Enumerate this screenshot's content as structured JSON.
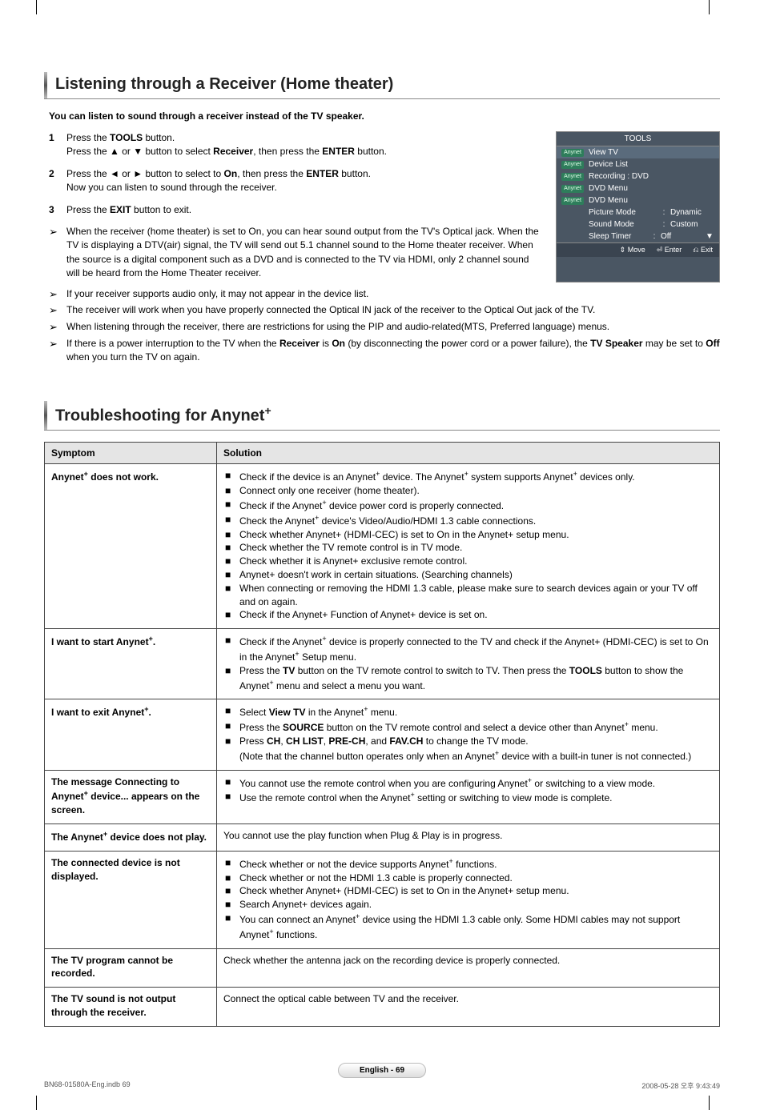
{
  "section1": {
    "title": "Listening through a Receiver (Home theater)",
    "intro": "You can listen to sound through a receiver instead of the TV speaker.",
    "steps": [
      {
        "num": "1",
        "html": "Press the <b>TOOLS</b> button.<br>Press the ▲ or ▼ button to select <b>Receiver</b>, then press the <b>ENTER</b> button."
      },
      {
        "num": "2",
        "html": "Press the ◄ or ► button to select to <b>On</b>, then press the <b>ENTER</b> button.<br>Now you can listen to sound through the receiver."
      },
      {
        "num": "3",
        "html": "Press the <b>EXIT</b> button to exit."
      }
    ],
    "notes": [
      "When the receiver (home theater) is set to On, you can hear sound output from the TV's Optical jack. When the TV is displaying a DTV(air) signal, the TV will send out 5.1 channel sound to the Home theater receiver. When the source is a digital component such as a DVD and is connected to the TV via HDMI, only 2 channel sound will be heard from the Home Theater receiver.",
      "If your receiver supports audio only, it may not appear in the device list.",
      "The receiver will work when you have properly connected the Optical IN jack of the receiver to the Optical Out jack of the TV.",
      "When listening through the receiver, there are restrictions for using the PIP and audio-related(MTS, Preferred language) menus.",
      "If there is a power interruption to the TV when the <b>Receiver</b> is <b>On</b> (by disconnecting the power cord or a power failure), the <b>TV Speaker</b> may be set to <b>Off</b> when you turn the TV on again."
    ]
  },
  "tools": {
    "title": "TOOLS",
    "items": [
      {
        "badge": true,
        "label": "View TV",
        "sel": true
      },
      {
        "badge": true,
        "label": "Device List"
      },
      {
        "badge": true,
        "label": "Recording : DVD"
      },
      {
        "badge": true,
        "label": "DVD Menu"
      },
      {
        "badge": true,
        "label": "DVD Menu"
      },
      {
        "badge": false,
        "label": "Picture Mode",
        "value": "Dynamic"
      },
      {
        "badge": false,
        "label": "Sound Mode",
        "value": "Custom"
      },
      {
        "badge": false,
        "label": "Sleep Timer",
        "value": "Off",
        "arrow": "▼"
      }
    ],
    "nav": {
      "move": "Move",
      "enter": "Enter",
      "exit": "Exit"
    }
  },
  "section2": {
    "title_html": "Troubleshooting for Anynet<sup>+</sup>",
    "headers": {
      "symptom": "Symptom",
      "solution": "Solution"
    },
    "rows": [
      {
        "symptom_html": "Anynet<sup>+</sup> does not work.",
        "bullets": [
          "Check if the device is an Anynet<sup>+</sup> device. The Anynet<sup>+</sup> system supports Anynet<sup>+</sup> devices only.",
          "Connect only one receiver (home theater).",
          "Check if the Anynet<sup>+</sup> device power cord is properly connected.",
          "Check the Anynet<sup>+</sup> device's Video/Audio/HDMI 1.3 cable connections.",
          "Check whether Anynet+ (HDMI-CEC) is set to On in the Anynet+ setup menu.",
          "Check whether the TV remote control is in TV mode.",
          "Check whether it is Anynet+ exclusive remote control.",
          "Anynet+ doesn't work in certain situations. (Searching channels)",
          "When connecting or removing the HDMI 1.3 cable, please make sure to search devices again or your TV off and on again.",
          "Check if the Anynet+ Function of Anynet+ device is set on."
        ]
      },
      {
        "symptom_html": "I want to start Anynet<sup>+</sup>.",
        "bullets": [
          "Check if the Anynet<sup>+</sup> device is properly connected to the TV and check if the Anynet+ (HDMI-CEC) is set to On in the Anynet<sup>+</sup> Setup menu.",
          "Press the <b>TV</b> button on the TV remote control to switch to TV. Then press the <b>TOOLS</b> button to show the Anynet<sup>+</sup> menu and select a menu you want."
        ]
      },
      {
        "symptom_html": "I want to exit Anynet<sup>+</sup>.",
        "bullets": [
          "Select <b>View TV</b> in the Anynet<sup>+</sup> menu.",
          "Press the <b>SOURCE</b> button on the TV remote control and select a device other than Anynet<sup>+</sup> menu.",
          "Press <b>CH</b>, <b>CH LIST</b>, <b>PRE-CH</b>, and <b>FAV.CH</b> to change the TV mode.<br>(Note that the channel button operates only when an Anynet<sup>+</sup> device with a built-in tuner is not connected.)"
        ]
      },
      {
        "symptom_html": "The message Connecting to Anynet<sup>+</sup> device... appears on the screen.",
        "bullets": [
          "You cannot use the remote control when you are configuring Anynet<sup>+</sup> or switching to a view mode.",
          "Use the remote control when the Anynet<sup>+</sup> setting or switching to view mode is complete."
        ]
      },
      {
        "symptom_html": "The Anynet<sup>+</sup> device does not play.",
        "plain": "You cannot use the play function when Plug & Play is in progress."
      },
      {
        "symptom_html": "The connected device is not displayed.",
        "bullets": [
          "Check whether or not the device supports Anynet<sup>+</sup> functions.",
          "Check whether or not the HDMI 1.3 cable is properly connected.",
          "Check whether Anynet+ (HDMI-CEC) is set to On in the Anynet+ setup menu.",
          "Search Anynet+ devices again.",
          "You can connect an Anynet<sup>+</sup> device using the HDMI 1.3 cable only. Some HDMI cables may not support Anynet<sup>+</sup> functions."
        ]
      },
      {
        "symptom_html": "The TV program cannot be recorded.",
        "plain": "Check whether the antenna jack on the recording device is properly connected."
      },
      {
        "symptom_html": "The TV sound is not output through the receiver.",
        "plain": "Connect the optical cable between TV and the receiver."
      }
    ]
  },
  "page_badge": "English - 69",
  "footer": {
    "left": "BN68-01580A-Eng.indb   69",
    "right": "2008-05-28   오후 9:43:49"
  },
  "colors": {
    "panel_bg": "#4a5663",
    "panel_sel": "#5a6b7c",
    "badge_bg": "#2e7d5b",
    "table_header_bg": "#e5e5e5",
    "border": "#444444"
  }
}
